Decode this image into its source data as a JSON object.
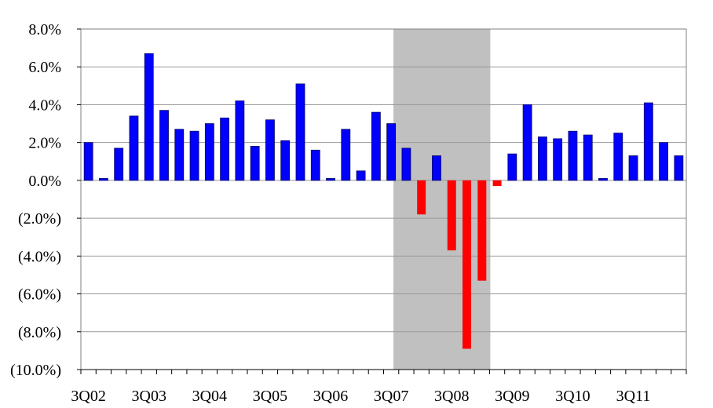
{
  "chart_data": {
    "type": "bar",
    "title": "",
    "xlabel": "",
    "ylabel": "",
    "ylim": [
      -10,
      8
    ],
    "grid": true,
    "y_ticks": [
      {
        "value": 8,
        "label": "8.0%"
      },
      {
        "value": 6,
        "label": "6.0%"
      },
      {
        "value": 4,
        "label": "4.0%"
      },
      {
        "value": 2,
        "label": "2.0%"
      },
      {
        "value": 0,
        "label": "0.0%"
      },
      {
        "value": -2,
        "label": "(2.0%)"
      },
      {
        "value": -4,
        "label": "(4.0%)"
      },
      {
        "value": -6,
        "label": "(6.0%)"
      },
      {
        "value": -8,
        "label": "(8.0%)"
      },
      {
        "value": -10,
        "label": "(10.0%)"
      }
    ],
    "x_tick_labels": [
      {
        "index": 0,
        "label": "3Q02"
      },
      {
        "index": 4,
        "label": "3Q03"
      },
      {
        "index": 8,
        "label": "3Q04"
      },
      {
        "index": 12,
        "label": "3Q05"
      },
      {
        "index": 16,
        "label": "3Q06"
      },
      {
        "index": 20,
        "label": "3Q07"
      },
      {
        "index": 24,
        "label": "3Q08"
      },
      {
        "index": 28,
        "label": "3Q09"
      },
      {
        "index": 32,
        "label": "3Q10"
      },
      {
        "index": 36,
        "label": "3Q11"
      }
    ],
    "categories": [
      "3Q02",
      "4Q02",
      "1Q03",
      "2Q03",
      "3Q03",
      "4Q03",
      "1Q04",
      "2Q04",
      "3Q04",
      "4Q04",
      "1Q05",
      "2Q05",
      "3Q05",
      "4Q05",
      "1Q06",
      "2Q06",
      "3Q06",
      "4Q06",
      "1Q07",
      "2Q07",
      "3Q07",
      "4Q07",
      "1Q08",
      "2Q08",
      "3Q08",
      "4Q08",
      "1Q09",
      "2Q09",
      "3Q09",
      "4Q09",
      "1Q10",
      "2Q10",
      "3Q10",
      "4Q10",
      "1Q11",
      "2Q11",
      "3Q11",
      "4Q11",
      "1Q12",
      "2Q12"
    ],
    "values": [
      2.0,
      0.1,
      1.7,
      3.4,
      6.7,
      3.7,
      2.7,
      2.6,
      3.0,
      3.3,
      4.2,
      1.8,
      3.2,
      2.1,
      5.1,
      1.6,
      0.1,
      2.7,
      0.5,
      3.6,
      3.0,
      1.7,
      -1.8,
      1.3,
      -3.7,
      -8.9,
      -5.3,
      -0.3,
      1.4,
      4.0,
      2.3,
      2.2,
      2.6,
      2.4,
      0.1,
      2.5,
      1.3,
      4.1,
      2.0,
      1.3
    ],
    "shaded_region": {
      "from_category": "4Q07",
      "to_category": "2Q09",
      "color": "#c0c0c0"
    },
    "colors": {
      "positive": "#0000ff",
      "negative": "#ff0000",
      "grid": "#999999",
      "axis": "#808080"
    }
  }
}
